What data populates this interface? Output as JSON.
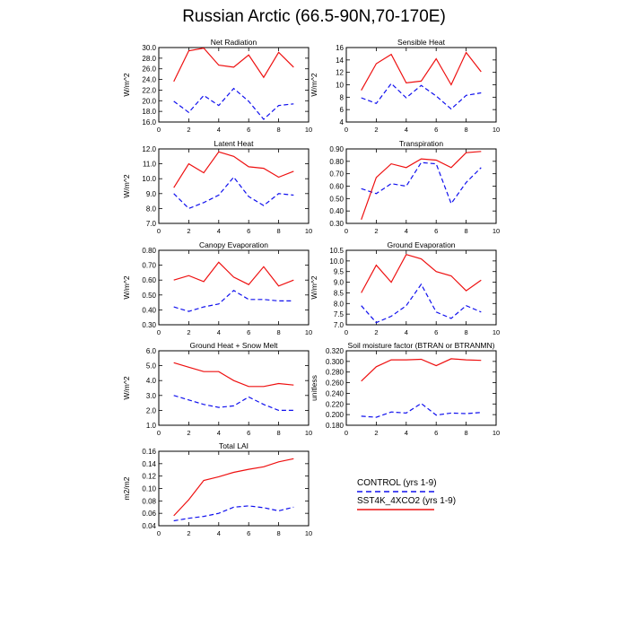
{
  "title": "Russian Arctic (66.5-90N,70-170E)",
  "legend": {
    "control": "CONTROL (yrs 1-9)",
    "experiment": "SST4K_4XCO2 (yrs 1-9)",
    "control_color": "#1010ee",
    "experiment_color": "#ee1010"
  },
  "chart_data": [
    {
      "type": "line",
      "title": "Net Radiation",
      "ylabel": "W/m^2",
      "xlim": [
        0,
        10
      ],
      "ylim": [
        16.0,
        30.0
      ],
      "yticks": [
        "16.0",
        "18.0",
        "20.0",
        "22.0",
        "24.0",
        "26.0",
        "28.0",
        "30.0"
      ],
      "xticks": [
        "0",
        "2",
        "4",
        "6",
        "8",
        "10"
      ],
      "x": [
        1,
        2,
        3,
        4,
        5,
        6,
        7,
        8,
        9
      ],
      "series": [
        {
          "name": "CONTROL (yrs 1-9)",
          "values": [
            19.9,
            17.8,
            21.0,
            19.1,
            22.3,
            19.9,
            16.5,
            19.1,
            19.4
          ]
        },
        {
          "name": "SST4K_4XCO2 (yrs 1-9)",
          "values": [
            23.6,
            29.4,
            29.9,
            26.7,
            26.3,
            28.6,
            24.4,
            29.1,
            26.3
          ]
        }
      ]
    },
    {
      "type": "line",
      "title": "Sensible Heat",
      "ylabel": "W/m^2",
      "xlim": [
        0,
        10
      ],
      "ylim": [
        4,
        16
      ],
      "yticks": [
        "4",
        "6",
        "8",
        "10",
        "12",
        "14",
        "16"
      ],
      "xticks": [
        "0",
        "2",
        "4",
        "6",
        "8",
        "10"
      ],
      "x": [
        1,
        2,
        3,
        4,
        5,
        6,
        7,
        8,
        9
      ],
      "series": [
        {
          "name": "CONTROL (yrs 1-9)",
          "values": [
            7.9,
            7.0,
            10.2,
            7.9,
            9.9,
            8.2,
            6.1,
            8.3,
            8.7
          ]
        },
        {
          "name": "SST4K_4XCO2 (yrs 1-9)",
          "values": [
            9.1,
            13.4,
            14.9,
            10.3,
            10.6,
            14.2,
            10.0,
            15.2,
            12.1
          ]
        }
      ]
    },
    {
      "type": "line",
      "title": "Latent Heat",
      "ylabel": "W/m^2",
      "xlim": [
        0,
        10
      ],
      "ylim": [
        7.0,
        12.0
      ],
      "yticks": [
        "7.0",
        "8.0",
        "9.0",
        "10.0",
        "11.0",
        "12.0"
      ],
      "xticks": [
        "0",
        "2",
        "4",
        "6",
        "8",
        "10"
      ],
      "x": [
        1,
        2,
        3,
        4,
        5,
        6,
        7,
        8,
        9
      ],
      "series": [
        {
          "name": "CONTROL (yrs 1-9)",
          "values": [
            9.0,
            8.0,
            8.4,
            8.9,
            10.1,
            8.8,
            8.2,
            9.0,
            8.9
          ]
        },
        {
          "name": "SST4K_4XCO2 (yrs 1-9)",
          "values": [
            9.4,
            11.0,
            10.4,
            11.8,
            11.5,
            10.8,
            10.7,
            10.1,
            10.5
          ]
        }
      ]
    },
    {
      "type": "line",
      "title": "Transpiration",
      "ylabel": "",
      "xlim": [
        0,
        10
      ],
      "ylim": [
        0.3,
        0.9
      ],
      "yticks": [
        "0.30",
        "0.40",
        "0.50",
        "0.60",
        "0.70",
        "0.80",
        "0.90"
      ],
      "xticks": [
        "0",
        "2",
        "4",
        "6",
        "8",
        "10"
      ],
      "x": [
        1,
        2,
        3,
        4,
        5,
        6,
        7,
        8,
        9
      ],
      "series": [
        {
          "name": "CONTROL (yrs 1-9)",
          "values": [
            0.58,
            0.54,
            0.62,
            0.6,
            0.79,
            0.78,
            0.46,
            0.63,
            0.75
          ]
        },
        {
          "name": "SST4K_4XCO2 (yrs 1-9)",
          "values": [
            0.33,
            0.67,
            0.78,
            0.75,
            0.82,
            0.81,
            0.75,
            0.87,
            0.88
          ]
        }
      ]
    },
    {
      "type": "line",
      "title": "Canopy Evaporation",
      "ylabel": "W/m^2",
      "xlim": [
        0,
        10
      ],
      "ylim": [
        0.3,
        0.8
      ],
      "yticks": [
        "0.30",
        "0.40",
        "0.50",
        "0.60",
        "0.70",
        "0.80"
      ],
      "xticks": [
        "0",
        "2",
        "4",
        "6",
        "8",
        "10"
      ],
      "x": [
        1,
        2,
        3,
        4,
        5,
        6,
        7,
        8,
        9
      ],
      "series": [
        {
          "name": "CONTROL (yrs 1-9)",
          "values": [
            0.42,
            0.39,
            0.42,
            0.44,
            0.53,
            0.47,
            0.47,
            0.46,
            0.46
          ]
        },
        {
          "name": "SST4K_4XCO2 (yrs 1-9)",
          "values": [
            0.6,
            0.63,
            0.59,
            0.72,
            0.62,
            0.57,
            0.69,
            0.56,
            0.6
          ]
        }
      ]
    },
    {
      "type": "line",
      "title": "Ground Evaporation",
      "ylabel": "W/m^2",
      "xlim": [
        0,
        10
      ],
      "ylim": [
        7.0,
        10.5
      ],
      "yticks": [
        "7.0",
        "7.5",
        "8.0",
        "8.5",
        "9.0",
        "9.5",
        "10.0",
        "10.5"
      ],
      "xticks": [
        "0",
        "2",
        "4",
        "6",
        "8",
        "10"
      ],
      "x": [
        1,
        2,
        3,
        4,
        5,
        6,
        7,
        8,
        9
      ],
      "series": [
        {
          "name": "CONTROL (yrs 1-9)",
          "values": [
            7.9,
            7.1,
            7.4,
            7.9,
            8.9,
            7.6,
            7.3,
            7.9,
            7.6
          ]
        },
        {
          "name": "SST4K_4XCO2 (yrs 1-9)",
          "values": [
            8.5,
            9.8,
            9.0,
            10.3,
            10.1,
            9.5,
            9.3,
            8.6,
            9.1
          ]
        }
      ]
    },
    {
      "type": "line",
      "title": "Ground Heat + Snow Melt",
      "ylabel": "W/m^2",
      "xlim": [
        0,
        10
      ],
      "ylim": [
        1.0,
        6.0
      ],
      "yticks": [
        "1.0",
        "2.0",
        "3.0",
        "4.0",
        "5.0",
        "6.0"
      ],
      "xticks": [
        "0",
        "2",
        "4",
        "6",
        "8",
        "10"
      ],
      "x": [
        1,
        2,
        3,
        4,
        5,
        6,
        7,
        8,
        9
      ],
      "series": [
        {
          "name": "CONTROL (yrs 1-9)",
          "values": [
            3.0,
            2.7,
            2.4,
            2.2,
            2.3,
            2.9,
            2.4,
            2.0,
            2.0
          ]
        },
        {
          "name": "SST4K_4XCO2 (yrs 1-9)",
          "values": [
            5.2,
            4.9,
            4.6,
            4.6,
            4.0,
            3.6,
            3.6,
            3.8,
            3.7
          ]
        }
      ]
    },
    {
      "type": "line",
      "title": "Soil moisture factor (BTRAN or BTRANMN)",
      "ylabel": "unitless",
      "xlim": [
        0,
        10
      ],
      "ylim": [
        0.18,
        0.32
      ],
      "yticks": [
        "0.180",
        "0.200",
        "0.220",
        "0.240",
        "0.260",
        "0.280",
        "0.300",
        "0.320"
      ],
      "xticks": [
        "0",
        "2",
        "4",
        "6",
        "8",
        "10"
      ],
      "x": [
        1,
        2,
        3,
        4,
        5,
        6,
        7,
        8,
        9
      ],
      "series": [
        {
          "name": "CONTROL (yrs 1-9)",
          "values": [
            0.197,
            0.195,
            0.205,
            0.203,
            0.221,
            0.199,
            0.203,
            0.202,
            0.204
          ]
        },
        {
          "name": "SST4K_4XCO2 (yrs 1-9)",
          "values": [
            0.263,
            0.29,
            0.303,
            0.303,
            0.304,
            0.292,
            0.305,
            0.303,
            0.302
          ]
        }
      ]
    },
    {
      "type": "line",
      "title": "Total LAI",
      "ylabel": "m2/m2",
      "xlim": [
        0,
        10
      ],
      "ylim": [
        0.04,
        0.16
      ],
      "yticks": [
        "0.04",
        "0.06",
        "0.08",
        "0.10",
        "0.12",
        "0.14",
        "0.16"
      ],
      "xticks": [
        "0",
        "2",
        "4",
        "6",
        "8",
        "10"
      ],
      "x": [
        1,
        2,
        3,
        4,
        5,
        6,
        7,
        8,
        9
      ],
      "series": [
        {
          "name": "CONTROL (yrs 1-9)",
          "values": [
            0.048,
            0.052,
            0.055,
            0.06,
            0.07,
            0.072,
            0.069,
            0.064,
            0.07
          ]
        },
        {
          "name": "SST4K_4XCO2 (yrs 1-9)",
          "values": [
            0.056,
            0.082,
            0.113,
            0.119,
            0.126,
            0.131,
            0.135,
            0.143,
            0.148
          ]
        }
      ]
    }
  ]
}
